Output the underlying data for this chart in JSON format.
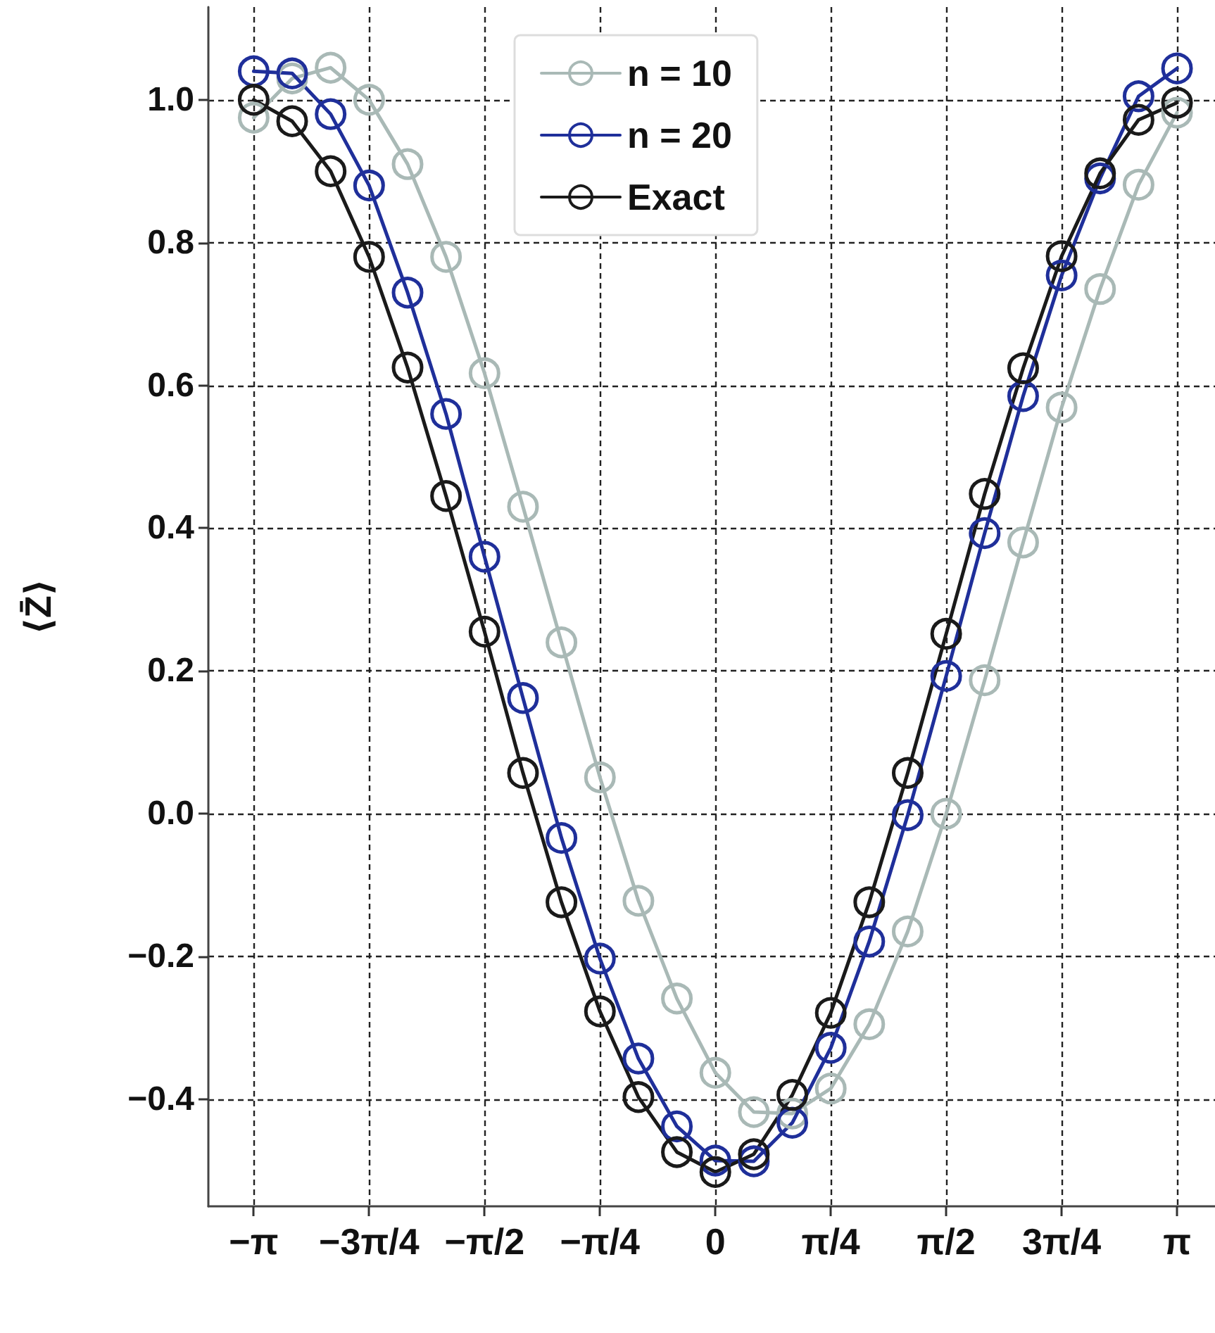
{
  "chart_data": {
    "type": "line",
    "ylabel": "⟨Z̄⟩",
    "x": [
      -3.1416,
      -2.8798,
      -2.618,
      -2.3562,
      -2.0944,
      -1.8326,
      -1.5708,
      -1.309,
      -1.0472,
      -0.7854,
      -0.5236,
      -0.2618,
      0,
      0.2618,
      0.5236,
      0.7854,
      1.0472,
      1.309,
      1.5708,
      1.8326,
      2.0944,
      2.3562,
      2.618,
      2.8798,
      3.1416
    ],
    "series": [
      {
        "name": "n = 10",
        "color": "#a9b9b6",
        "values": [
          0.975,
          1.03,
          1.045,
          1.0,
          0.91,
          0.78,
          0.617,
          0.43,
          0.24,
          0.051,
          -0.122,
          -0.259,
          -0.363,
          -0.418,
          -0.42,
          -0.385,
          -0.295,
          -0.165,
          0.0,
          0.187,
          0.38,
          0.569,
          0.735,
          0.881,
          0.982
        ]
      },
      {
        "name": "n = 20",
        "color": "#1f2f9a",
        "values": [
          1.04,
          1.037,
          0.98,
          0.88,
          0.73,
          0.56,
          0.36,
          0.162,
          -0.034,
          -0.203,
          -0.343,
          -0.438,
          -0.486,
          -0.487,
          -0.433,
          -0.328,
          -0.179,
          -0.002,
          0.193,
          0.393,
          0.585,
          0.754,
          0.89,
          1.005,
          1.044
        ]
      },
      {
        "name": "Exact",
        "color": "#1a1a1a",
        "values": [
          1.0,
          0.97,
          0.9,
          0.78,
          0.625,
          0.445,
          0.255,
          0.057,
          -0.124,
          -0.277,
          -0.397,
          -0.474,
          -0.502,
          -0.477,
          -0.394,
          -0.279,
          -0.124,
          0.057,
          0.252,
          0.448,
          0.624,
          0.781,
          0.897,
          0.972,
          0.996
        ]
      }
    ],
    "xlim": [
      -3.45,
      3.4
    ],
    "xticks": [
      {
        "value": -3.1416,
        "label": "−π"
      },
      {
        "value": -2.3562,
        "label": "−3π/4"
      },
      {
        "value": -1.5708,
        "label": "−π/2"
      },
      {
        "value": -0.7854,
        "label": "−π/4"
      },
      0,
      {
        "value": 0.7854,
        "label": "π/4"
      },
      {
        "value": 1.5708,
        "label": "π/2"
      },
      {
        "value": 2.3562,
        "label": "3π/4"
      },
      {
        "value": 3.1416,
        "label": "π"
      }
    ],
    "ylim": [
      -0.55,
      1.13
    ],
    "yticks": [
      {
        "value": -0.4,
        "label": "−0.4"
      },
      {
        "value": -0.2,
        "label": "−0.2"
      },
      {
        "value": 0,
        "label": "0.0"
      },
      {
        "value": 0.2,
        "label": "0.2"
      },
      {
        "value": 0.4,
        "label": "0.4"
      },
      {
        "value": 0.6,
        "label": "0.6"
      },
      {
        "value": 0.8,
        "label": "0.8"
      },
      {
        "value": 1.0,
        "label": "1.0"
      }
    ],
    "grid": true,
    "legend": "top",
    "marker": "circle",
    "line_style": "solid"
  }
}
